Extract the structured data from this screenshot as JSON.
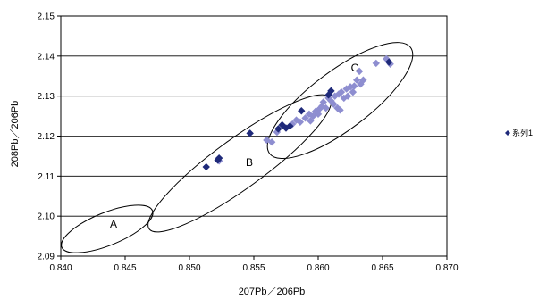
{
  "chart_data": {
    "type": "scatter",
    "xlabel": "207Pb／206Pb",
    "ylabel": "208Pb／206Pb",
    "xlim": [
      0.84,
      0.87
    ],
    "ylim": [
      2.09,
      2.15
    ],
    "x_ticks": [
      "0.840",
      "0.845",
      "0.850",
      "0.855",
      "0.860",
      "0.865",
      "0.870"
    ],
    "y_ticks": [
      "2.09",
      "2.10",
      "2.11",
      "2.12",
      "2.13",
      "2.14",
      "2.15"
    ],
    "grid": "horizontal",
    "legend_position": "right",
    "colors": {
      "series_dark": "#1f2a7a",
      "series_light": "#8e8ed0",
      "ellipse": "#000000"
    },
    "series": [
      {
        "name": "系列1",
        "marker": "diamond",
        "color": "#1f2a7a",
        "points": [
          [
            0.8513,
            2.1123
          ],
          [
            0.8523,
            2.1145
          ],
          [
            0.8522,
            2.114
          ],
          [
            0.8547,
            2.1207
          ],
          [
            0.8569,
            2.1218
          ],
          [
            0.8572,
            2.1228
          ],
          [
            0.8575,
            2.122
          ],
          [
            0.8578,
            2.1225
          ],
          [
            0.8587,
            2.1263
          ],
          [
            0.8608,
            2.1303
          ],
          [
            0.861,
            2.1313
          ],
          [
            0.8655,
            2.1385
          ]
        ]
      },
      {
        "name": "",
        "marker": "diamond",
        "color": "#8e8ed0",
        "points": [
          [
            0.8523,
            2.1138
          ],
          [
            0.856,
            2.119
          ],
          [
            0.8564,
            2.1185
          ],
          [
            0.8568,
            2.121
          ],
          [
            0.858,
            2.123
          ],
          [
            0.8583,
            2.124
          ],
          [
            0.8586,
            2.1235
          ],
          [
            0.859,
            2.1245
          ],
          [
            0.8593,
            2.1255
          ],
          [
            0.8594,
            2.1238
          ],
          [
            0.8596,
            2.125
          ],
          [
            0.8598,
            2.1262
          ],
          [
            0.86,
            2.1255
          ],
          [
            0.8601,
            2.1268
          ],
          [
            0.8603,
            2.1275
          ],
          [
            0.8604,
            2.1285
          ],
          [
            0.8606,
            2.127
          ],
          [
            0.8608,
            2.1295
          ],
          [
            0.861,
            2.1288
          ],
          [
            0.8612,
            2.128
          ],
          [
            0.8613,
            2.13
          ],
          [
            0.8615,
            2.127
          ],
          [
            0.8616,
            2.1305
          ],
          [
            0.8617,
            2.1265
          ],
          [
            0.8618,
            2.131
          ],
          [
            0.862,
            2.1295
          ],
          [
            0.8622,
            2.1318
          ],
          [
            0.8623,
            2.13
          ],
          [
            0.8625,
            2.1323
          ],
          [
            0.8627,
            2.131
          ],
          [
            0.8628,
            2.1325
          ],
          [
            0.863,
            2.134
          ],
          [
            0.8632,
            2.1362
          ],
          [
            0.8633,
            2.133
          ],
          [
            0.8635,
            2.134
          ],
          [
            0.8645,
            2.1382
          ],
          [
            0.8653,
            2.1393
          ],
          [
            0.8656,
            2.138
          ]
        ]
      }
    ],
    "regions": [
      {
        "label": "A",
        "center": [
          0.8436,
          2.0968
        ],
        "semi_major": 0.0038,
        "semi_minor": 0.0015
      },
      {
        "label": "B",
        "center": [
          0.8539,
          2.1132
        ],
        "semi_major": 0.0079,
        "semi_minor": 0.0024
      },
      {
        "label": "C",
        "center": [
          0.8617,
          2.1289
        ],
        "semi_major": 0.0054,
        "semi_minor": 0.0024
      }
    ]
  }
}
